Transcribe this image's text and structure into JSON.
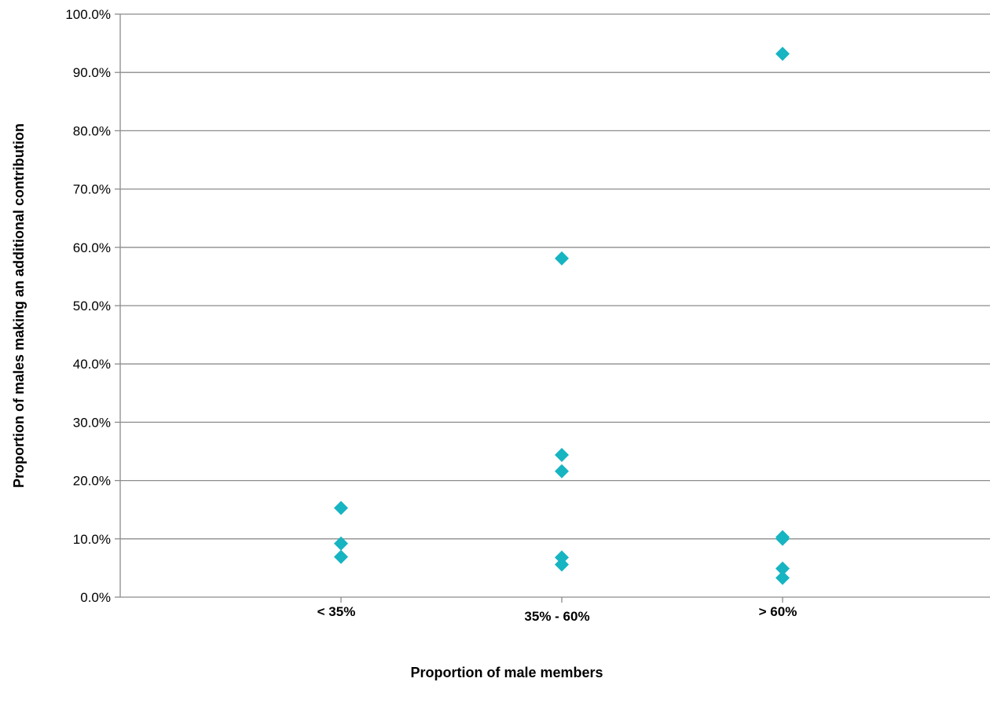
{
  "chart_data": {
    "type": "scatter",
    "title": "",
    "xlabel": "Proportion of male members",
    "ylabel": "Proportion of males making an additional contribution",
    "categories": [
      "< 35%",
      "35% - 60%",
      "> 60%"
    ],
    "y_ticks": [
      "0.0%",
      "10.0%",
      "20.0%",
      "30.0%",
      "40.0%",
      "50.0%",
      "60.0%",
      "70.0%",
      "80.0%",
      "90.0%",
      "100.0%"
    ],
    "ylim": [
      0,
      100
    ],
    "grid": true,
    "legend": "none",
    "marker_color": "#17B4C2",
    "series": [
      {
        "points": [
          {
            "category": "< 35%",
            "y": 15.3
          },
          {
            "category": "< 35%",
            "y": 9.2
          },
          {
            "category": "< 35%",
            "y": 6.9
          },
          {
            "category": "35% - 60%",
            "y": 58.1
          },
          {
            "category": "35% - 60%",
            "y": 24.4
          },
          {
            "category": "35% - 60%",
            "y": 21.6
          },
          {
            "category": "35% - 60%",
            "y": 6.8
          },
          {
            "category": "35% - 60%",
            "y": 5.6
          },
          {
            "category": "> 60%",
            "y": 93.2
          },
          {
            "category": "> 60%",
            "y": 10.3
          },
          {
            "category": "> 60%",
            "y": 10.0
          },
          {
            "category": "> 60%",
            "y": 4.9
          },
          {
            "category": "> 60%",
            "y": 3.3
          }
        ]
      }
    ]
  }
}
